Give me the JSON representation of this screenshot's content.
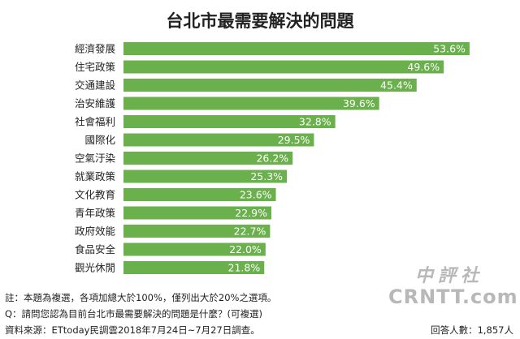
{
  "chart_data": {
    "type": "bar",
    "orientation": "horizontal",
    "title": "台北市最需要解決的問題",
    "categories": [
      "經濟發展",
      "住宅政策",
      "交通建設",
      "治安維護",
      "社會福利",
      "國際化",
      "空氣汙染",
      "就業政策",
      "文化教育",
      "青年政策",
      "政府效能",
      "食品安全",
      "觀光休閒"
    ],
    "values": [
      53.6,
      49.6,
      45.4,
      39.6,
      32.8,
      29.5,
      26.2,
      25.3,
      23.6,
      22.9,
      22.7,
      22.0,
      21.8
    ],
    "value_labels": [
      "53.6%",
      "49.6%",
      "45.4%",
      "39.6%",
      "32.8%",
      "29.5%",
      "26.2%",
      "25.3%",
      "23.6%",
      "22.9%",
      "22.7%",
      "22.0%",
      "21.8%"
    ],
    "unit": "%",
    "xlim": [
      0,
      56
    ],
    "grid": false,
    "legend": "none",
    "bar_color": "#6ab04c"
  },
  "footer": {
    "note": "註：本題為複選，各項加總大於100%，僅列出大於20%之選項。",
    "question": "Q：請問您認為目前台北市最需要解決的問題是什麼？(可複選)",
    "source": "資料來源：ETtoday民調雲2018年7月24日~7月27日調查。",
    "respondents": "回答人數：1,857人"
  },
  "watermark": {
    "line1": "中評社",
    "line2": "CRNTT.com"
  }
}
